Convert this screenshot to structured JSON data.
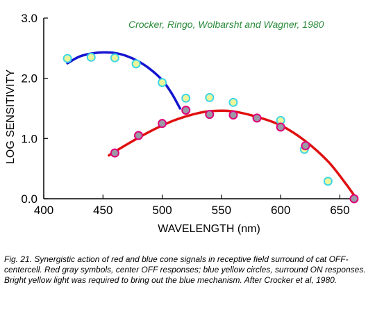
{
  "chart_data": {
    "type": "scatter",
    "xlabel": "WAVELENGTH (nm)",
    "ylabel": "LOG SENSITIVITY",
    "xlim": [
      400,
      665
    ],
    "ylim": [
      0.0,
      3.0
    ],
    "x_ticks": [
      "400",
      "450",
      "500",
      "550",
      "600",
      "650"
    ],
    "y_ticks": [
      "0.0",
      "1.0",
      "2.0",
      "3.0"
    ],
    "annotation": "Crocker, Ringo, Wolbarsht and Wagner, 1980",
    "grid": false,
    "series": [
      {
        "marker": "yellow-circle",
        "color": "#ecf59a",
        "edge_color": "#3fd6e6",
        "points": [
          [
            420,
            2.33
          ],
          [
            440,
            2.35
          ],
          [
            460,
            2.34
          ],
          [
            478,
            2.24
          ],
          [
            500,
            1.93
          ],
          [
            520,
            1.67
          ],
          [
            540,
            1.68
          ],
          [
            560,
            1.6
          ],
          [
            600,
            1.3
          ],
          [
            620,
            0.82
          ],
          [
            640,
            0.29
          ]
        ]
      },
      {
        "marker": "gray-circle",
        "color": "#9a9aa6",
        "edge_color": "#e0007a",
        "points": [
          [
            460,
            0.76
          ],
          [
            480,
            1.05
          ],
          [
            500,
            1.25
          ],
          [
            520,
            1.47
          ],
          [
            540,
            1.4
          ],
          [
            560,
            1.39
          ],
          [
            580,
            1.34
          ],
          [
            600,
            1.19
          ],
          [
            621,
            0.88
          ],
          [
            662,
            0.0
          ]
        ]
      }
    ],
    "curves": [
      {
        "color": "#1414d0",
        "points": [
          [
            420,
            2.25
          ],
          [
            430,
            2.36
          ],
          [
            440,
            2.41
          ],
          [
            450,
            2.43
          ],
          [
            460,
            2.42
          ],
          [
            470,
            2.37
          ],
          [
            480,
            2.28
          ],
          [
            490,
            2.15
          ],
          [
            500,
            1.97
          ],
          [
            508,
            1.75
          ],
          [
            515,
            1.5
          ]
        ]
      },
      {
        "color": "#e01010",
        "points": [
          [
            455,
            0.72
          ],
          [
            470,
            0.9
          ],
          [
            490,
            1.12
          ],
          [
            510,
            1.3
          ],
          [
            530,
            1.42
          ],
          [
            545,
            1.46
          ],
          [
            560,
            1.45
          ],
          [
            580,
            1.36
          ],
          [
            600,
            1.22
          ],
          [
            620,
            0.97
          ],
          [
            640,
            0.62
          ],
          [
            655,
            0.25
          ],
          [
            664,
            0.0
          ]
        ]
      }
    ]
  },
  "caption": "Fig. 21. Synergistic action of red and blue cone signals in receptive field surround of cat OFF-centercell. Red gray symbols, center OFF responses; blue yellow circles, surround ON responses. Bright yellow light was required to bring out the blue mechanism. After Crocker et al, 1980."
}
